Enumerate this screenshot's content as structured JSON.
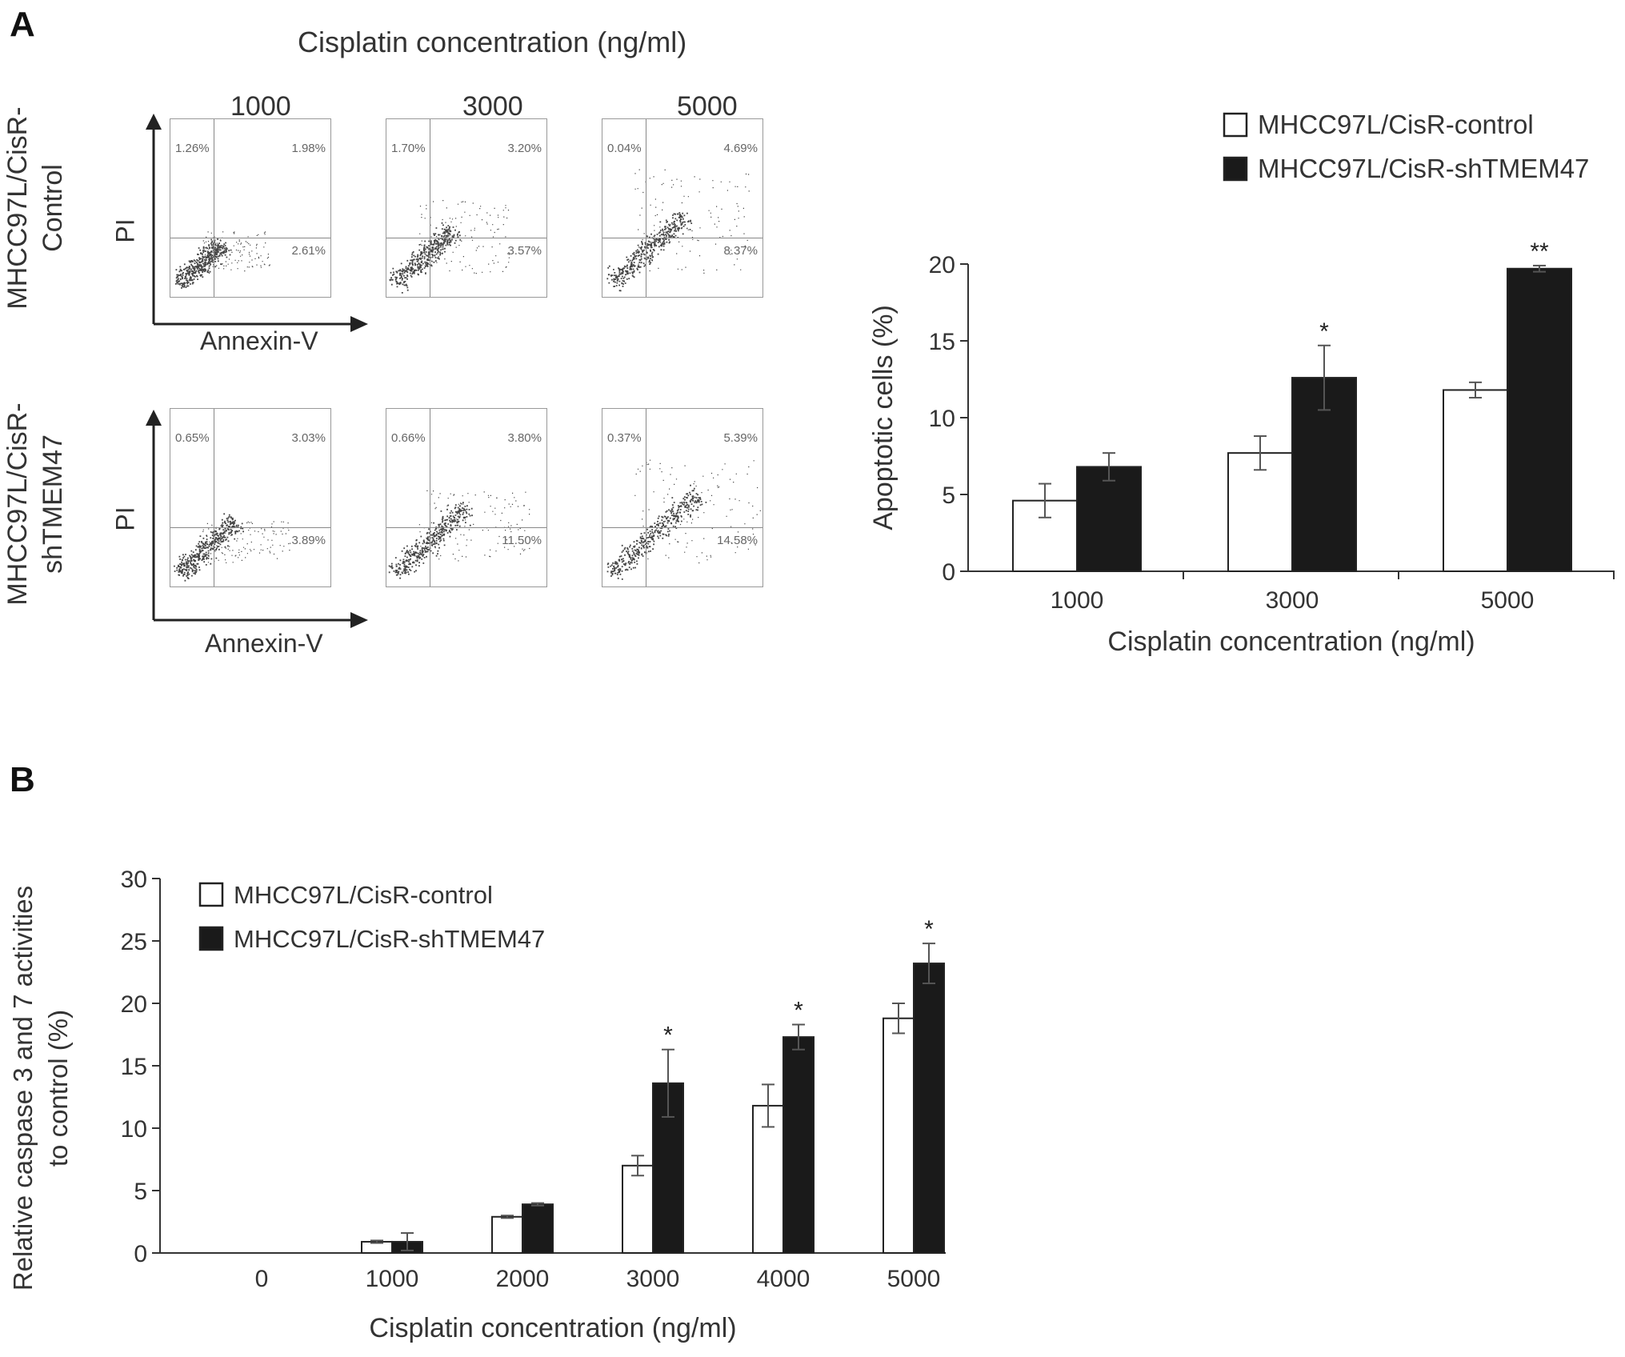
{
  "panel_a": {
    "letter": "A",
    "flow": {
      "top_title": "Cisplatin concentration (ng/ml)",
      "column_headers": [
        "1000",
        "3000",
        "5000"
      ],
      "rows": [
        {
          "label": "MHCC97L/CisR-Control",
          "label_lines": [
            "MHCC97L/CisR-",
            "Control"
          ],
          "y_axis_label": "PI",
          "x_axis_label": "Annexin-V",
          "plots": [
            {
              "ul": "1.26%",
              "ur": "1.98%",
              "lr": "2.61%"
            },
            {
              "ul": "1.70%",
              "ur": "3.20%",
              "lr": "3.57%"
            },
            {
              "ul": "0.04%",
              "ur": "4.69%",
              "lr": "8.37%"
            }
          ]
        },
        {
          "label": "MHCC97L/CisR-shTMEM47",
          "label_lines": [
            "MHCC97L/CisR-",
            "shTMEM47"
          ],
          "y_axis_label": "PI",
          "x_axis_label": "Annexin-V",
          "plots": [
            {
              "ul": "0.65%",
              "ur": "3.03%",
              "lr": "3.89%"
            },
            {
              "ul": "0.66%",
              "ur": "3.80%",
              "lr": "11.50%"
            },
            {
              "ul": "0.37%",
              "ur": "5.39%",
              "lr": "14.58%"
            }
          ]
        }
      ]
    }
  },
  "panel_b": {
    "letter": "B"
  },
  "colors": {
    "control_fill": "#ffffff",
    "knockdown_fill": "#1a1a1a",
    "axis": "#333333",
    "error": "#555555"
  },
  "chart_data": [
    {
      "id": "apoptosis",
      "type": "bar",
      "categories": [
        "1000",
        "3000",
        "5000"
      ],
      "series": [
        {
          "name": "MHCC97L/CisR-control",
          "values": [
            4.6,
            7.7,
            11.8
          ],
          "errors": [
            1.1,
            1.1,
            0.5
          ]
        },
        {
          "name": "MHCC97L/CisR-shTMEM47",
          "values": [
            6.8,
            12.6,
            19.7
          ],
          "errors": [
            0.9,
            2.1,
            0.2
          ]
        }
      ],
      "significance": [
        "",
        "*",
        "**"
      ],
      "xlabel": "Cisplatin concentration (ng/ml)",
      "ylabel": "Apoptotic cells (%)",
      "ylim": [
        0,
        20
      ],
      "yticks": [
        "0",
        "5",
        "10",
        "15",
        "20"
      ],
      "legend_position": "top-right"
    },
    {
      "id": "caspase",
      "type": "bar",
      "categories": [
        "0",
        "1000",
        "2000",
        "3000",
        "4000",
        "5000"
      ],
      "series": [
        {
          "name": "MHCC97L/CisR-control",
          "values": [
            0,
            0.9,
            2.9,
            7.0,
            11.8,
            18.8
          ],
          "errors": [
            0,
            0.1,
            0.1,
            0.8,
            1.7,
            1.2
          ]
        },
        {
          "name": "MHCC97L/CisR-shTMEM47",
          "values": [
            0,
            0.9,
            3.9,
            13.6,
            17.3,
            23.2
          ],
          "errors": [
            0,
            0.7,
            0.1,
            2.7,
            1.0,
            1.6
          ]
        }
      ],
      "significance": [
        "",
        "",
        "",
        "*",
        "*",
        "*"
      ],
      "xlabel": "Cisplatin concentration (ng/ml)",
      "ylabel_lines": [
        "Relative caspase 3 and 7 activities",
        "to control (%)"
      ],
      "ylim": [
        0,
        30
      ],
      "yticks": [
        "0",
        "5",
        "10",
        "15",
        "20",
        "25",
        "30"
      ],
      "legend_position": "top-left"
    }
  ]
}
